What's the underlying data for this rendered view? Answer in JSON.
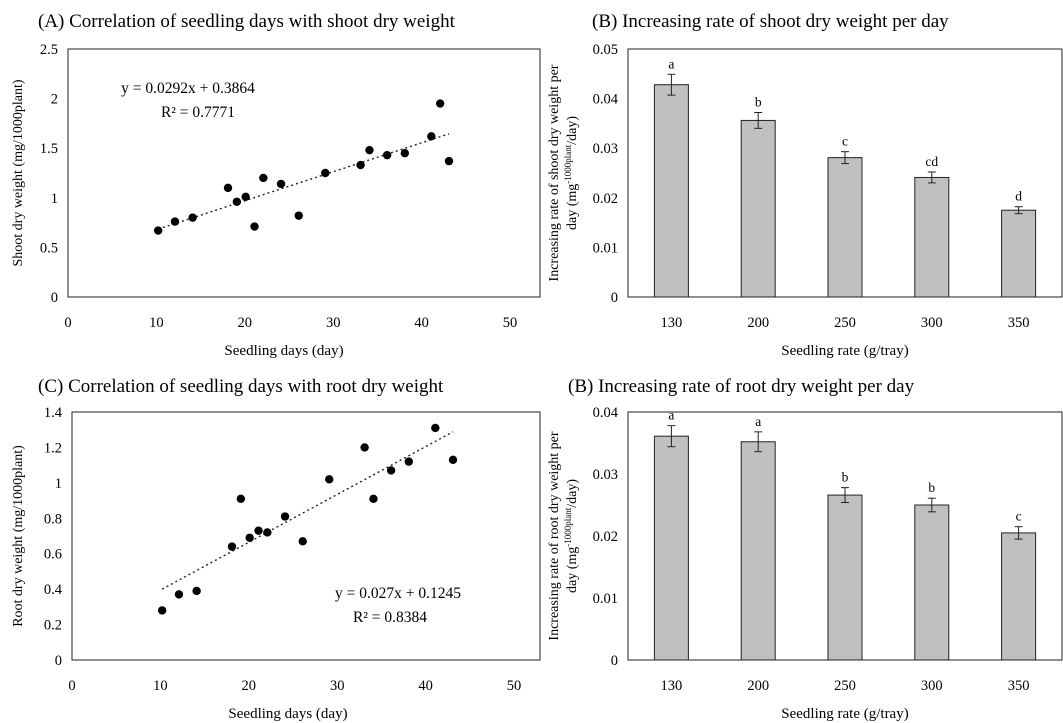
{
  "chart_data": [
    {
      "id": "A",
      "type": "scatter",
      "title": "(A) Correlation of seedling days with shoot dry weight",
      "xlabel": "Seedling days (day)",
      "ylabel": "Shoot dry weight (mg/1000plant)",
      "xlim": [
        0,
        50
      ],
      "ylim": [
        0,
        2.5
      ],
      "xticks": [
        "0",
        "10",
        "20",
        "30",
        "40",
        "50"
      ],
      "yticks": [
        "0",
        "0.5",
        "1",
        "1.5",
        "2",
        "2.5"
      ],
      "points": [
        [
          10.2,
          0.67
        ],
        [
          12.1,
          0.76
        ],
        [
          14.1,
          0.8
        ],
        [
          18.1,
          1.1
        ],
        [
          19.1,
          0.96
        ],
        [
          20.1,
          1.01
        ],
        [
          21.1,
          0.71
        ],
        [
          22.1,
          1.2
        ],
        [
          24.1,
          1.14
        ],
        [
          26.1,
          0.82
        ],
        [
          29.1,
          1.25
        ],
        [
          33.1,
          1.33
        ],
        [
          34.1,
          1.48
        ],
        [
          36.1,
          1.43
        ],
        [
          38.1,
          1.45
        ],
        [
          41.1,
          1.62
        ],
        [
          42.1,
          1.95
        ],
        [
          43.1,
          1.37
        ]
      ],
      "trendline": {
        "slope": 0.0292,
        "intercept": 0.3864,
        "x_range": [
          10.2,
          43.1
        ]
      },
      "equation": "y = 0.0292x + 0.3864",
      "r2": "R² = 0.7771",
      "grid": false
    },
    {
      "id": "B1",
      "type": "bar",
      "title": "(B) Increasing rate of shoot dry weight per day",
      "xlabel": "Seedling rate (g/tray)",
      "ylabel_line1": "Increasing rate of shoot dry weight per",
      "ylabel_line2_prefix": "day (mg",
      "ylabel_line2_sup": "-1000plant",
      "ylabel_line2_suffix": "/day)",
      "categories": [
        "130",
        "200",
        "250",
        "300",
        "350"
      ],
      "values": [
        0.0428,
        0.0356,
        0.0281,
        0.0241,
        0.0175
      ],
      "errors": [
        0.0021,
        0.0016,
        0.0012,
        0.0011,
        0.0007
      ],
      "letters": [
        "a",
        "b",
        "c",
        "cd",
        "d"
      ],
      "ylim": [
        0,
        0.05
      ],
      "yticks": [
        "0",
        "0.01",
        "0.02",
        "0.03",
        "0.04",
        "0.05"
      ],
      "bar_color": "#c0c0c0",
      "grid": false
    },
    {
      "id": "C",
      "type": "scatter",
      "title": "(C) Correlation of seedling days with root dry weight",
      "xlabel": "Seedling days (day)",
      "ylabel": "Root dry weight (mg/1000plant)",
      "xlim": [
        0,
        50
      ],
      "ylim": [
        0,
        1.4
      ],
      "xticks": [
        "0",
        "10",
        "20",
        "30",
        "40",
        "50"
      ],
      "yticks": [
        "0",
        "0.2",
        "0.4",
        "0.6",
        "0.8",
        "1",
        "1.2",
        "1.4"
      ],
      "points": [
        [
          10.2,
          0.28
        ],
        [
          12.1,
          0.37
        ],
        [
          14.1,
          0.39
        ],
        [
          18.1,
          0.64
        ],
        [
          19.1,
          0.91
        ],
        [
          20.1,
          0.69
        ],
        [
          21.1,
          0.73
        ],
        [
          22.1,
          0.72
        ],
        [
          24.1,
          0.81
        ],
        [
          26.1,
          0.67
        ],
        [
          29.1,
          1.02
        ],
        [
          33.1,
          1.2
        ],
        [
          34.1,
          0.91
        ],
        [
          36.1,
          1.07
        ],
        [
          38.1,
          1.12
        ],
        [
          41.1,
          1.31
        ],
        [
          43.1,
          1.13
        ]
      ],
      "trendline": {
        "slope": 0.027,
        "intercept": 0.1245,
        "x_range": [
          10.2,
          43.1
        ]
      },
      "equation": "y = 0.027x + 0.1245",
      "r2": "R² = 0.8384",
      "grid": false
    },
    {
      "id": "B2",
      "type": "bar",
      "title": "(B) Increasing rate of root dry weight per day",
      "xlabel": "Seedling rate (g/tray)",
      "ylabel_line1": "Increasing rate of root dry weight per",
      "ylabel_line2_prefix": "day (mg",
      "ylabel_line2_sup": "-1000plant",
      "ylabel_line2_suffix": "/day)",
      "categories": [
        "130",
        "200",
        "250",
        "300",
        "350"
      ],
      "values": [
        0.0361,
        0.0352,
        0.0266,
        0.025,
        0.0205
      ],
      "errors": [
        0.0017,
        0.0016,
        0.0012,
        0.0011,
        0.001
      ],
      "letters": [
        "a",
        "a",
        "b",
        "b",
        "c"
      ],
      "ylim": [
        0,
        0.04
      ],
      "yticks": [
        "0",
        "0.01",
        "0.02",
        "0.03",
        "0.04"
      ],
      "bar_color": "#c0c0c0",
      "grid": false
    }
  ]
}
